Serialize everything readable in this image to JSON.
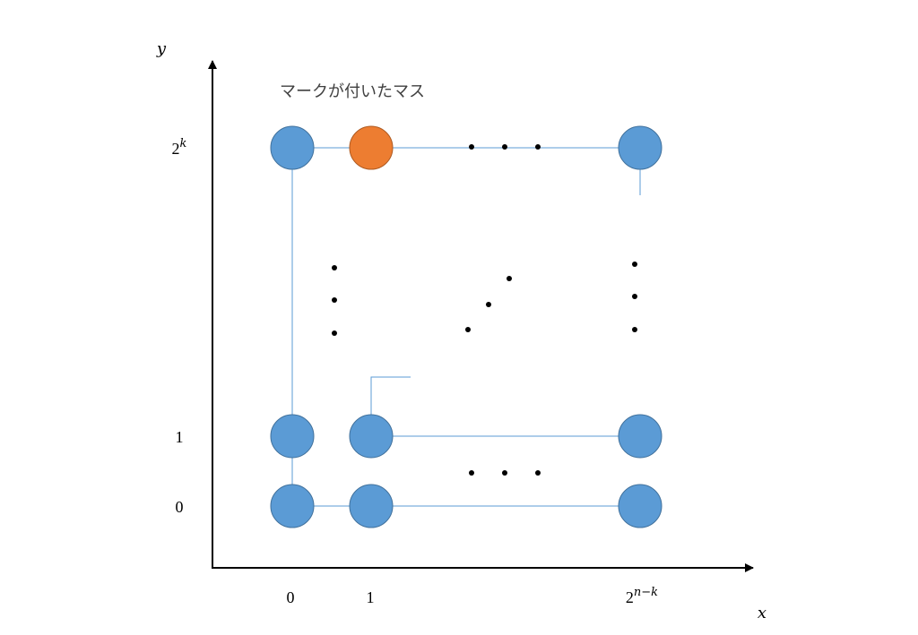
{
  "axes": {
    "x_label": "x",
    "y_label": "y"
  },
  "y_ticks": [
    {
      "base": "0"
    },
    {
      "base": "1"
    },
    {
      "base": "2",
      "exp": "k"
    }
  ],
  "x_ticks": [
    {
      "base": "0"
    },
    {
      "base": "1"
    },
    {
      "base": "2",
      "exp": "n−k"
    }
  ],
  "annotation": "マークが付いたマス"
}
